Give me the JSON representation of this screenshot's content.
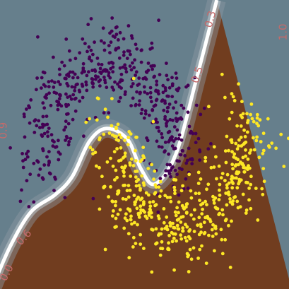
{
  "chart_data": {
    "type": "scatter",
    "title": "",
    "xlabel": "",
    "ylabel": "",
    "xlim": [
      -1.6,
      2.6
    ],
    "ylim": [
      -1.1,
      1.6
    ],
    "grid": false,
    "legend": "none",
    "decision_boundary": {
      "description_free": true,
      "boundary_points": [
        [
          -1.72,
          -1.1
        ],
        [
          -1.45,
          -0.7
        ],
        [
          -1.15,
          -0.38
        ],
        [
          -0.8,
          -0.22
        ],
        [
          -0.55,
          -0.05
        ],
        [
          -0.3,
          0.28
        ],
        [
          -0.05,
          0.4
        ],
        [
          0.25,
          0.3
        ],
        [
          0.45,
          0.02
        ],
        [
          0.65,
          -0.12
        ],
        [
          0.95,
          0.15
        ],
        [
          1.25,
          0.85
        ],
        [
          1.55,
          1.6
        ]
      ],
      "region_colors": {
        "class0": "#667f8c",
        "class1": "#713d1f"
      },
      "boundary_color": "#ffffff"
    },
    "contour_labels": [
      {
        "text": "0.0",
        "x": -1.5,
        "y": -0.95,
        "rotation": -62,
        "color": "#c56a6a"
      },
      {
        "text": "0.6",
        "x": -1.25,
        "y": -0.62,
        "rotation": -48,
        "color": "#c56a6a"
      },
      {
        "text": "0.9",
        "x": -1.55,
        "y": 0.38,
        "rotation": -90,
        "color": "#c56a6a"
      },
      {
        "text": "0.5",
        "x": 1.27,
        "y": 0.9,
        "rotation": -70,
        "color": "#c56a6a"
      },
      {
        "text": "0.3",
        "x": 1.46,
        "y": 1.42,
        "rotation": -75,
        "color": "#c56a6a"
      },
      {
        "text": "1.0",
        "x": 2.52,
        "y": 1.3,
        "rotation": -90,
        "color": "#c56a6a"
      }
    ],
    "series": [
      {
        "class": 0,
        "color": "#440154",
        "generator": {
          "shape": "upper_moon",
          "center": [
            0.0,
            0.0
          ],
          "radius": 1.0,
          "noise": 0.2,
          "count": 500,
          "seed": 7
        }
      },
      {
        "class": 1,
        "color": "#fde725",
        "generator": {
          "shape": "lower_moon",
          "center": [
            1.0,
            0.5
          ],
          "radius": 1.0,
          "noise": 0.2,
          "count": 500,
          "seed": 11
        }
      }
    ]
  }
}
